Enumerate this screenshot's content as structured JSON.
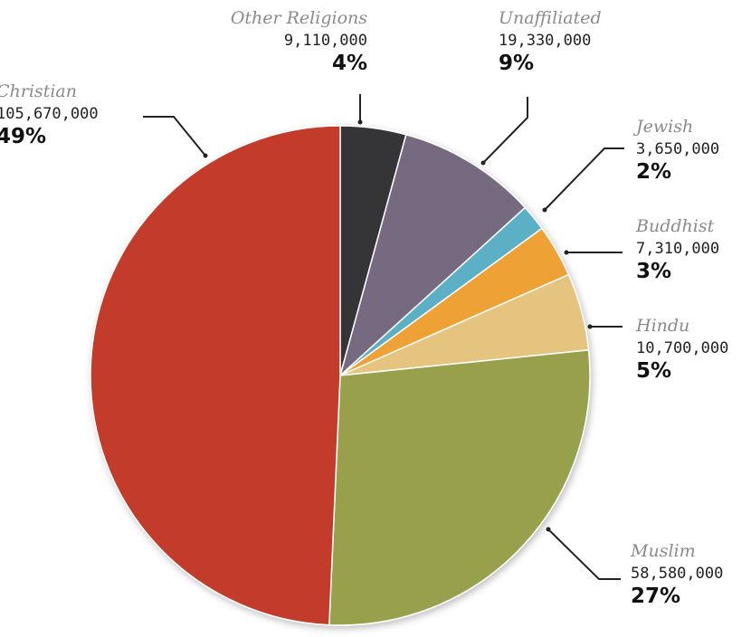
{
  "chart_data": {
    "type": "pie",
    "title": "",
    "start": "12 o'clock",
    "direction": "clockwise",
    "slices": [
      {
        "name": "Other Religions",
        "value": 9110000,
        "value_label": "9,110,000",
        "percent_label": "4%",
        "color": "#363638"
      },
      {
        "name": "Unaffiliated",
        "value": 19330000,
        "value_label": "19,330,000",
        "percent_label": "9%",
        "color": "#746a80"
      },
      {
        "name": "Jewish",
        "value": 3650000,
        "value_label": "3,650,000",
        "percent_label": "2%",
        "color": "#5bb0c6"
      },
      {
        "name": "Buddhist",
        "value": 7310000,
        "value_label": "7,310,000",
        "percent_label": "3%",
        "color": "#eea236"
      },
      {
        "name": "Hindu",
        "value": 10700000,
        "value_label": "10,700,000",
        "percent_label": "5%",
        "color": "#e4c47e"
      },
      {
        "name": "Muslim",
        "value": 58580000,
        "value_label": "58,580,000",
        "percent_label": "27%",
        "color": "#98a04c"
      },
      {
        "name": "Christian",
        "value": 105670000,
        "value_label": "105,670,000",
        "percent_label": "49%",
        "color": "#c33b2a"
      }
    ]
  }
}
